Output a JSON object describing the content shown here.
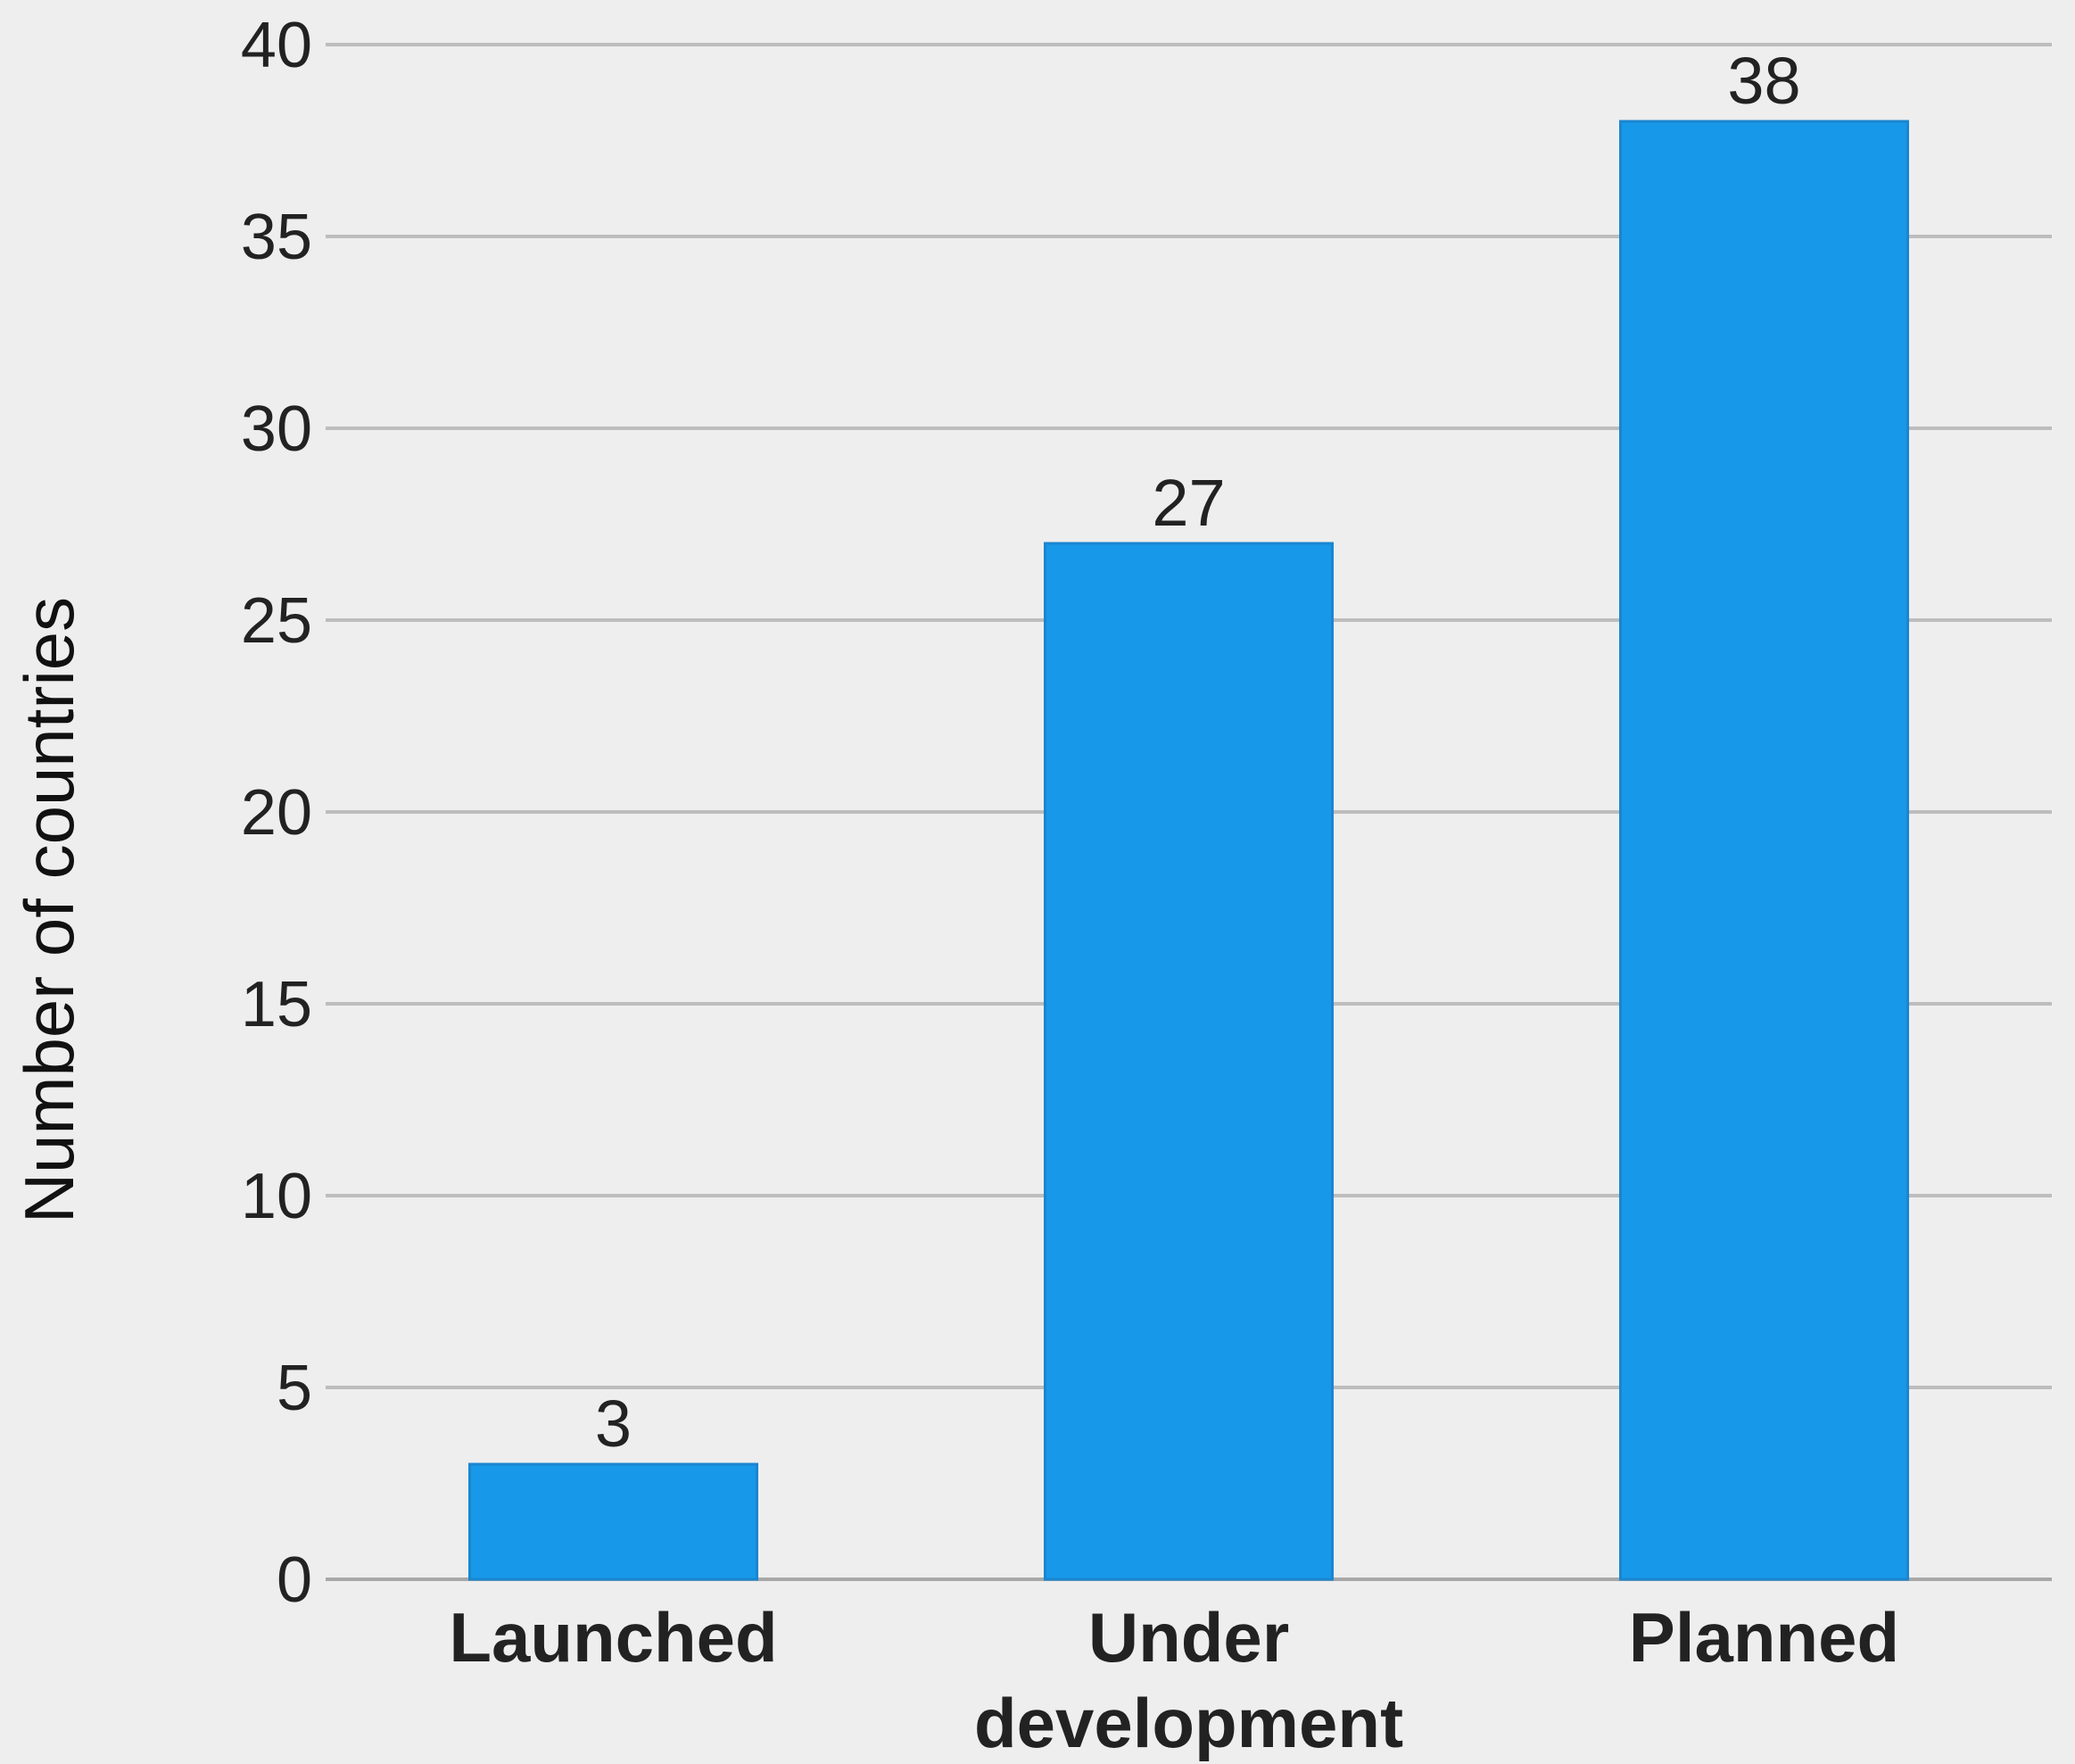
{
  "chart_data": {
    "type": "bar",
    "categories": [
      [
        "Launched"
      ],
      [
        "Under",
        "development"
      ],
      [
        "Planned"
      ]
    ],
    "values": [
      3,
      27,
      38
    ],
    "data_labels": [
      "3",
      "27",
      "38"
    ],
    "title": "",
    "xlabel": "",
    "ylabel": "Number of countries",
    "ylim": [
      0,
      40
    ],
    "yticks": [
      0,
      5,
      10,
      15,
      20,
      25,
      30,
      35,
      40
    ],
    "grid": true,
    "legend": "none",
    "colors": {
      "bar": "#1898e8",
      "background": "#eeeeee"
    }
  }
}
